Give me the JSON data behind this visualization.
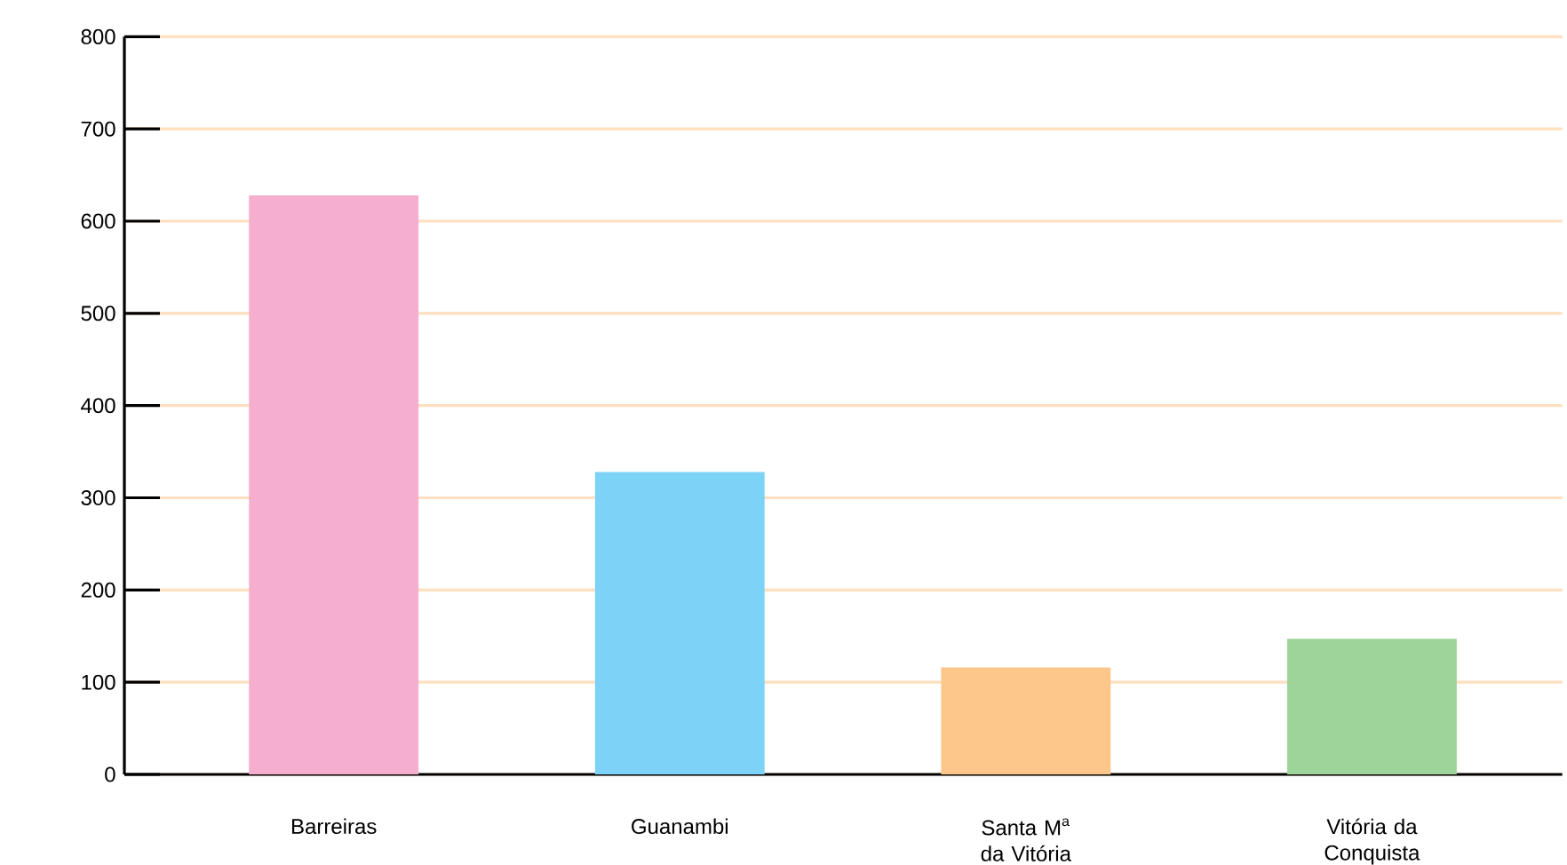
{
  "chart_data": {
    "type": "bar",
    "categories": [
      "Barreiras",
      "Guanambi",
      "Santa M$^{a}$ da Vitória",
      "Vitória da Conquista"
    ],
    "values": [
      628,
      328,
      116,
      147
    ],
    "colors": [
      "#f5aecd",
      "#7dd3f7",
      "#fdc68a",
      "#9dd49a"
    ],
    "ylim": [
      0,
      800
    ],
    "yticks": [
      0,
      100,
      200,
      300,
      400,
      500,
      600,
      700,
      800
    ],
    "grid": "y"
  }
}
